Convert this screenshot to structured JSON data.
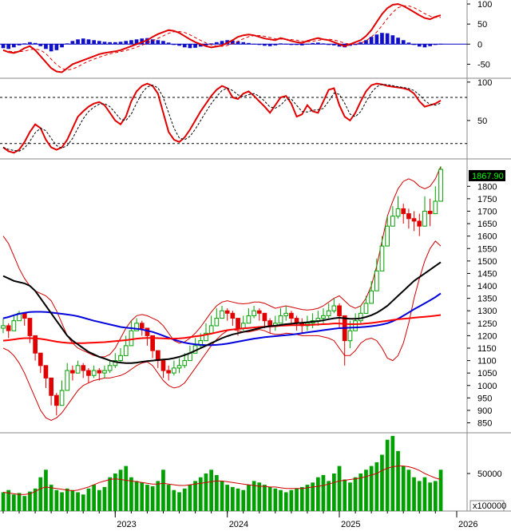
{
  "chart_data": [
    {
      "type": "bar+line",
      "panel": "macd",
      "y_ticks": [
        "100",
        "50",
        "0",
        "-50"
      ],
      "ylim": [
        -85,
        110
      ],
      "histogram_colors": {
        "positive": "#1010c8",
        "negative": "#1010c8"
      },
      "line_colors": {
        "main": "#e00000",
        "signal": "#e00000"
      },
      "main_line": [
        -15,
        -20,
        -22,
        -18,
        -10,
        -5,
        -15,
        -30,
        -45,
        -60,
        -68,
        -70,
        -60,
        -50,
        -45,
        -40,
        -35,
        -30,
        -25,
        -22,
        -20,
        -18,
        -15,
        -10,
        -5,
        0,
        5,
        10,
        18,
        25,
        30,
        35,
        33,
        28,
        20,
        12,
        5,
        0,
        -5,
        -8,
        -6,
        -3,
        3,
        10,
        18,
        22,
        24,
        22,
        18,
        14,
        12,
        10,
        15,
        12,
        8,
        5,
        3,
        8,
        12,
        15,
        12,
        10,
        5,
        0,
        -5,
        0,
        5,
        10,
        20,
        35,
        55,
        75,
        90,
        98,
        100,
        95,
        88,
        80,
        72,
        65,
        62,
        68,
        72
      ],
      "histogram": [
        -10,
        -12,
        -8,
        -3,
        2,
        5,
        3,
        -5,
        -12,
        -18,
        -15,
        -8,
        2,
        8,
        12,
        14,
        12,
        10,
        8,
        6,
        5,
        5,
        6,
        8,
        10,
        12,
        14,
        15,
        12,
        10,
        8,
        4,
        0,
        -4,
        -8,
        -10,
        -9,
        -6,
        -3,
        2,
        5,
        8,
        10,
        9,
        7,
        5,
        3,
        1,
        -2,
        -4,
        -5,
        -3,
        2,
        1,
        -1,
        -2,
        -3,
        1,
        3,
        4,
        2,
        0,
        -3,
        -6,
        -8,
        -4,
        0,
        5,
        10,
        18,
        24,
        28,
        27,
        22,
        16,
        10,
        4,
        -2,
        -6,
        -8,
        -5,
        -1,
        1
      ]
    },
    {
      "type": "line",
      "panel": "stochastic",
      "y_ticks": [
        "100",
        "50"
      ],
      "ylim": [
        0,
        105
      ],
      "reference_lines": [
        80,
        20
      ],
      "main_line": [
        15,
        10,
        8,
        12,
        22,
        35,
        45,
        40,
        25,
        15,
        12,
        15,
        25,
        40,
        55,
        62,
        68,
        72,
        74,
        70,
        60,
        50,
        45,
        55,
        75,
        88,
        95,
        98,
        95,
        85,
        60,
        35,
        25,
        22,
        28,
        38,
        50,
        62,
        72,
        82,
        90,
        95,
        92,
        80,
        78,
        85,
        88,
        82,
        75,
        68,
        60,
        70,
        80,
        82,
        72,
        55,
        58,
        70,
        62,
        60,
        75,
        90,
        92,
        70,
        55,
        50,
        60,
        75,
        88,
        96,
        98,
        97,
        95,
        94,
        93,
        92,
        90,
        85,
        75,
        68,
        70,
        72,
        76
      ]
    },
    {
      "type": "candlestick",
      "panel": "price",
      "y_ticks": [
        "1800",
        "1750",
        "1700",
        "1650",
        "1600",
        "1550",
        "1500",
        "1450",
        "1400",
        "1350",
        "1300",
        "1250",
        "1200",
        "1150",
        "1100",
        "1050",
        "1000",
        "950",
        "900",
        "850"
      ],
      "ylim": [
        810,
        1910
      ],
      "last_price_label": "1867.90",
      "x_ticks": [
        "2023",
        "2024",
        "2025",
        "2026"
      ],
      "colors": {
        "up": "#00a000",
        "down": "#e00000",
        "bollinger": "#d00000",
        "ma_fast": "#ff0000",
        "ma_mid": "#000000",
        "ma_slow": "#0000dd"
      },
      "close": [
        1240,
        1220,
        1260,
        1290,
        1270,
        1200,
        1130,
        1080,
        1030,
        960,
        920,
        980,
        1060,
        1050,
        1080,
        1060,
        1040,
        1060,
        1050,
        1060,
        1080,
        1100,
        1120,
        1160,
        1220,
        1250,
        1230,
        1200,
        1140,
        1100,
        1060,
        1050,
        1070,
        1080,
        1100,
        1130,
        1160,
        1180,
        1210,
        1240,
        1270,
        1300,
        1290,
        1270,
        1230,
        1250,
        1280,
        1300,
        1290,
        1260,
        1240,
        1250,
        1280,
        1290,
        1270,
        1250,
        1240,
        1250,
        1260,
        1270,
        1280,
        1300,
        1320,
        1280,
        1180,
        1220,
        1260,
        1290,
        1330,
        1380,
        1460,
        1560,
        1640,
        1680,
        1710,
        1690,
        1670,
        1660,
        1640,
        1700,
        1690,
        1740,
        1868
      ],
      "high": [
        1270,
        1250,
        1280,
        1300,
        1290,
        1240,
        1180,
        1120,
        1080,
        1010,
        970,
        1020,
        1090,
        1080,
        1100,
        1090,
        1070,
        1080,
        1070,
        1080,
        1100,
        1130,
        1150,
        1200,
        1260,
        1270,
        1260,
        1230,
        1180,
        1130,
        1090,
        1080,
        1100,
        1110,
        1130,
        1160,
        1190,
        1210,
        1250,
        1280,
        1310,
        1320,
        1310,
        1300,
        1270,
        1280,
        1310,
        1320,
        1310,
        1290,
        1270,
        1280,
        1310,
        1320,
        1300,
        1280,
        1270,
        1280,
        1290,
        1300,
        1310,
        1330,
        1350,
        1330,
        1250,
        1260,
        1290,
        1320,
        1360,
        1420,
        1510,
        1600,
        1680,
        1720,
        1760,
        1730,
        1710,
        1700,
        1690,
        1760,
        1750,
        1800,
        1880
      ],
      "low": [
        1210,
        1190,
        1230,
        1260,
        1240,
        1170,
        1100,
        1050,
        990,
        920,
        880,
        940,
        1030,
        1020,
        1050,
        1030,
        1010,
        1030,
        1020,
        1030,
        1050,
        1070,
        1090,
        1130,
        1190,
        1220,
        1200,
        1160,
        1110,
        1070,
        1030,
        1020,
        1040,
        1050,
        1070,
        1100,
        1130,
        1150,
        1180,
        1210,
        1240,
        1270,
        1260,
        1240,
        1200,
        1220,
        1250,
        1270,
        1260,
        1230,
        1210,
        1220,
        1250,
        1260,
        1240,
        1220,
        1210,
        1220,
        1230,
        1240,
        1250,
        1270,
        1290,
        1230,
        1080,
        1150,
        1220,
        1250,
        1290,
        1340,
        1420,
        1520,
        1600,
        1640,
        1670,
        1650,
        1630,
        1620,
        1600,
        1660,
        1640,
        1700,
        1790
      ],
      "ma_fast": [
        1180,
        1182,
        1185,
        1188,
        1190,
        1190,
        1189,
        1187,
        1184,
        1180,
        1176,
        1173,
        1171,
        1170,
        1170,
        1170,
        1171,
        1172,
        1173,
        1174,
        1176,
        1178,
        1180,
        1182,
        1185,
        1188,
        1190,
        1191,
        1191,
        1190,
        1189,
        1188,
        1188,
        1189,
        1191,
        1194,
        1197,
        1200,
        1204,
        1208,
        1213,
        1218,
        1222,
        1225,
        1227,
        1229,
        1231,
        1233,
        1235,
        1236,
        1237,
        1238,
        1240,
        1241,
        1242,
        1242,
        1243,
        1243,
        1244,
        1245,
        1246,
        1247,
        1249,
        1249,
        1247,
        1246,
        1246,
        1247,
        1249,
        1251,
        1254,
        1257,
        1260,
        1263,
        1266,
        1268,
        1270,
        1272,
        1274,
        1276,
        1278,
        1280,
        1283
      ],
      "ma_mid": [
        1440,
        1430,
        1420,
        1415,
        1410,
        1400,
        1380,
        1350,
        1320,
        1290,
        1260,
        1230,
        1200,
        1180,
        1165,
        1150,
        1135,
        1125,
        1115,
        1108,
        1100,
        1095,
        1092,
        1090,
        1090,
        1092,
        1095,
        1098,
        1100,
        1102,
        1104,
        1106,
        1110,
        1115,
        1122,
        1130,
        1140,
        1150,
        1160,
        1170,
        1180,
        1190,
        1198,
        1205,
        1210,
        1215,
        1220,
        1225,
        1230,
        1235,
        1238,
        1240,
        1243,
        1246,
        1248,
        1250,
        1252,
        1254,
        1256,
        1258,
        1262,
        1266,
        1270,
        1272,
        1270,
        1268,
        1268,
        1270,
        1275,
        1282,
        1292,
        1305,
        1320,
        1340,
        1360,
        1380,
        1400,
        1420,
        1435,
        1450,
        1465,
        1480,
        1495
      ],
      "ma_slow": [
        1270,
        1275,
        1282,
        1288,
        1292,
        1295,
        1296,
        1296,
        1295,
        1293,
        1290,
        1288,
        1285,
        1282,
        1278,
        1272,
        1266,
        1260,
        1255,
        1250,
        1245,
        1240,
        1235,
        1232,
        1230,
        1228,
        1225,
        1220,
        1215,
        1208,
        1200,
        1192,
        1184,
        1178,
        1172,
        1168,
        1165,
        1163,
        1162,
        1162,
        1163,
        1165,
        1168,
        1172,
        1176,
        1180,
        1184,
        1188,
        1191,
        1194,
        1196,
        1198,
        1200,
        1202,
        1204,
        1207,
        1210,
        1213,
        1216,
        1219,
        1222,
        1225,
        1228,
        1230,
        1231,
        1232,
        1233,
        1234,
        1236,
        1238,
        1241,
        1245,
        1250,
        1258,
        1268,
        1280,
        1293,
        1306,
        1318,
        1330,
        1342,
        1355,
        1370
      ],
      "bb_upper": [
        1600,
        1570,
        1520,
        1470,
        1430,
        1400,
        1380,
        1370,
        1360,
        1340,
        1300,
        1250,
        1200,
        1170,
        1150,
        1140,
        1130,
        1120,
        1115,
        1115,
        1125,
        1150,
        1190,
        1230,
        1260,
        1280,
        1285,
        1280,
        1270,
        1260,
        1240,
        1210,
        1180,
        1170,
        1175,
        1190,
        1210,
        1235,
        1265,
        1295,
        1320,
        1335,
        1340,
        1335,
        1330,
        1328,
        1330,
        1335,
        1335,
        1330,
        1320,
        1310,
        1315,
        1320,
        1315,
        1310,
        1305,
        1303,
        1305,
        1310,
        1320,
        1335,
        1350,
        1360,
        1340,
        1320,
        1310,
        1320,
        1350,
        1400,
        1480,
        1580,
        1680,
        1740,
        1790,
        1820,
        1830,
        1820,
        1800,
        1790,
        1800,
        1830,
        1880
      ],
      "bb_lower": [
        1150,
        1140,
        1120,
        1090,
        1050,
        1000,
        950,
        900,
        870,
        860,
        870,
        890,
        920,
        950,
        980,
        1000,
        1010,
        1020,
        1025,
        1030,
        1030,
        1035,
        1040,
        1050,
        1065,
        1080,
        1090,
        1095,
        1080,
        1050,
        1020,
        1000,
        990,
        995,
        1010,
        1040,
        1070,
        1100,
        1130,
        1160,
        1185,
        1205,
        1220,
        1225,
        1220,
        1215,
        1215,
        1220,
        1225,
        1220,
        1210,
        1205,
        1205,
        1210,
        1208,
        1205,
        1200,
        1200,
        1200,
        1200,
        1195,
        1190,
        1180,
        1150,
        1120,
        1120,
        1140,
        1170,
        1185,
        1190,
        1180,
        1150,
        1110,
        1100,
        1120,
        1170,
        1250,
        1350,
        1430,
        1500,
        1550,
        1580,
        1560
      ]
    },
    {
      "type": "bar+line",
      "panel": "volume",
      "y_ticks": [
        "50000"
      ],
      "unit_label": "x100000",
      "ylim": [
        0,
        100000
      ],
      "colors": {
        "bars": "#00a000",
        "ma": "#d00000"
      },
      "values": [
        25000,
        28000,
        22000,
        24000,
        20000,
        26000,
        30000,
        45000,
        55000,
        35000,
        28000,
        25000,
        30000,
        28000,
        25000,
        22000,
        30000,
        35000,
        28000,
        32000,
        45000,
        50000,
        55000,
        60000,
        45000,
        40000,
        38000,
        35000,
        33000,
        40000,
        55000,
        35000,
        28000,
        25000,
        30000,
        35000,
        40000,
        45000,
        50000,
        55000,
        48000,
        40000,
        35000,
        32000,
        30000,
        28000,
        35000,
        40000,
        38000,
        35000,
        32000,
        30000,
        28000,
        25000,
        28000,
        30000,
        32000,
        35000,
        38000,
        45000,
        48000,
        40000,
        50000,
        60000,
        42000,
        38000,
        45000,
        50000,
        55000,
        60000,
        65000,
        75000,
        95000,
        100000,
        80000,
        60000,
        55000,
        45000,
        40000,
        45000,
        38000,
        40000,
        55000
      ],
      "ma": [
        25000,
        24000,
        23000,
        22000,
        22000,
        23000,
        26000,
        30000,
        32000,
        31000,
        30000,
        29000,
        28000,
        27000,
        28000,
        30000,
        32000,
        35000,
        38000,
        40000,
        42000,
        43000,
        42000,
        41000,
        40000,
        39000,
        38000,
        37000,
        36000,
        36000,
        37000,
        36000,
        35000,
        34000,
        34000,
        35000,
        36000,
        37000,
        38000,
        39000,
        40000,
        40000,
        39000,
        38000,
        37000,
        36000,
        35000,
        34000,
        33000,
        33000,
        32000,
        32000,
        31000,
        30000,
        30000,
        30000,
        30000,
        31000,
        32000,
        33000,
        34000,
        36000,
        38000,
        40000,
        41000,
        42000,
        43000,
        44000,
        46000,
        48000,
        50000,
        54000,
        57000,
        59000,
        60000,
        60000,
        59000,
        57000,
        54000,
        50000,
        47000,
        44000,
        42000
      ]
    }
  ]
}
